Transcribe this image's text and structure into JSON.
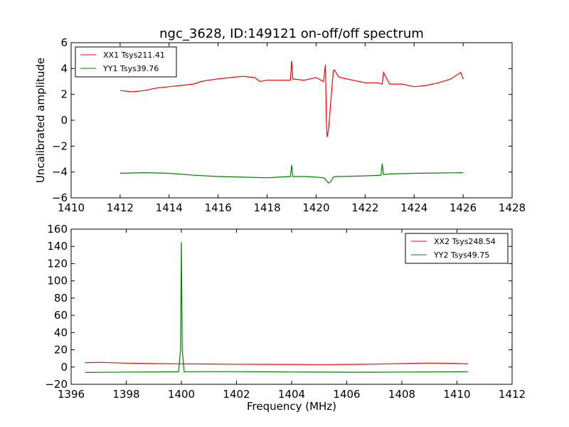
{
  "chart_data": [
    {
      "type": "line",
      "title": "ngc_3628, ID:149121 on-off/off spectrum",
      "xlabel": "",
      "ylabel": "Uncalibrated amplitude",
      "xlim": [
        1410,
        1428
      ],
      "ylim": [
        -6,
        6
      ],
      "xticks": [
        1410,
        1412,
        1414,
        1416,
        1418,
        1420,
        1422,
        1424,
        1426,
        1428
      ],
      "yticks": [
        -6,
        -4,
        -2,
        0,
        2,
        4,
        6
      ],
      "legend_position": "top-left",
      "series": [
        {
          "name": "XX1 Tsys211.41",
          "color": "#ff0000",
          "x": [
            1412.0,
            1412.5,
            1413.0,
            1413.5,
            1414.0,
            1414.5,
            1415.0,
            1415.3,
            1415.6,
            1416.0,
            1416.5,
            1417.0,
            1417.5,
            1417.7,
            1418.0,
            1418.5,
            1418.95,
            1419.0,
            1419.05,
            1419.5,
            1420.0,
            1420.3,
            1420.38,
            1420.42,
            1420.45,
            1420.5,
            1420.55,
            1420.6,
            1420.7,
            1420.75,
            1420.9,
            1421.0,
            1421.5,
            1422.0,
            1422.5,
            1422.7,
            1422.75,
            1423.0,
            1423.5,
            1424.0,
            1424.5,
            1425.0,
            1425.5,
            1425.9,
            1426.0
          ],
          "values": [
            2.3,
            2.2,
            2.3,
            2.5,
            2.6,
            2.7,
            2.8,
            3.0,
            3.1,
            3.2,
            3.3,
            3.4,
            3.3,
            3.0,
            3.1,
            3.1,
            3.1,
            4.6,
            3.2,
            3.1,
            3.3,
            3.0,
            4.3,
            -0.2,
            -1.3,
            -0.8,
            0.2,
            1.5,
            3.8,
            3.9,
            3.4,
            3.3,
            3.1,
            2.9,
            2.9,
            2.8,
            3.7,
            2.8,
            2.8,
            2.6,
            2.7,
            2.9,
            3.2,
            3.7,
            3.2
          ]
        },
        {
          "name": "YY1 Tsys39.76",
          "color": "#008000",
          "x": [
            1412.0,
            1413.0,
            1414.0,
            1415.0,
            1416.0,
            1417.0,
            1418.0,
            1418.95,
            1419.0,
            1419.05,
            1419.5,
            1420.0,
            1420.3,
            1420.4,
            1420.5,
            1420.6,
            1420.7,
            1420.8,
            1421.0,
            1422.0,
            1422.65,
            1422.7,
            1422.75,
            1423.0,
            1424.0,
            1425.0,
            1426.0
          ],
          "values": [
            -4.1,
            -4.05,
            -4.1,
            -4.25,
            -4.35,
            -4.4,
            -4.45,
            -4.35,
            -3.45,
            -4.35,
            -4.35,
            -4.4,
            -4.45,
            -4.6,
            -4.85,
            -4.75,
            -4.4,
            -4.35,
            -4.35,
            -4.3,
            -4.25,
            -3.35,
            -4.2,
            -4.15,
            -4.1,
            -4.08,
            -4.05
          ]
        }
      ]
    },
    {
      "type": "line",
      "title": "",
      "xlabel": "Frequency (MHz)",
      "ylabel": "",
      "xlim": [
        1396,
        1412
      ],
      "ylim": [
        -20,
        160
      ],
      "xticks": [
        1396,
        1398,
        1400,
        1402,
        1404,
        1406,
        1408,
        1410,
        1412
      ],
      "yticks": [
        -20,
        0,
        20,
        40,
        60,
        80,
        100,
        120,
        140,
        160
      ],
      "legend_position": "top-right",
      "series": [
        {
          "name": "XX2 Tsys248.54",
          "color": "#ff0000",
          "x": [
            1396.5,
            1397.0,
            1397.5,
            1398.0,
            1399.0,
            1400.0,
            1401.0,
            1402.0,
            1403.0,
            1404.0,
            1405.0,
            1406.0,
            1407.0,
            1408.0,
            1409.0,
            1410.0,
            1410.4
          ],
          "values": [
            5.0,
            5.4,
            5.0,
            4.5,
            4.0,
            3.7,
            3.5,
            3.3,
            3.1,
            3.0,
            2.9,
            3.0,
            3.4,
            4.1,
            4.6,
            4.2,
            3.6
          ]
        },
        {
          "name": "YY2 Tsys49.75",
          "color": "#008000",
          "x": [
            1396.5,
            1397.0,
            1398.0,
            1399.0,
            1399.9,
            1399.97,
            1400.0,
            1400.03,
            1400.1,
            1401.0,
            1402.0,
            1403.0,
            1404.0,
            1405.0,
            1406.0,
            1407.0,
            1408.0,
            1409.0,
            1410.0,
            1410.4
          ],
          "values": [
            -6.2,
            -6.1,
            -5.8,
            -5.6,
            -5.5,
            20,
            145,
            20,
            -5.4,
            -5.3,
            -5.3,
            -5.5,
            -5.7,
            -5.9,
            -6.0,
            -6.0,
            -5.8,
            -5.6,
            -5.5,
            -5.4
          ]
        }
      ]
    }
  ]
}
